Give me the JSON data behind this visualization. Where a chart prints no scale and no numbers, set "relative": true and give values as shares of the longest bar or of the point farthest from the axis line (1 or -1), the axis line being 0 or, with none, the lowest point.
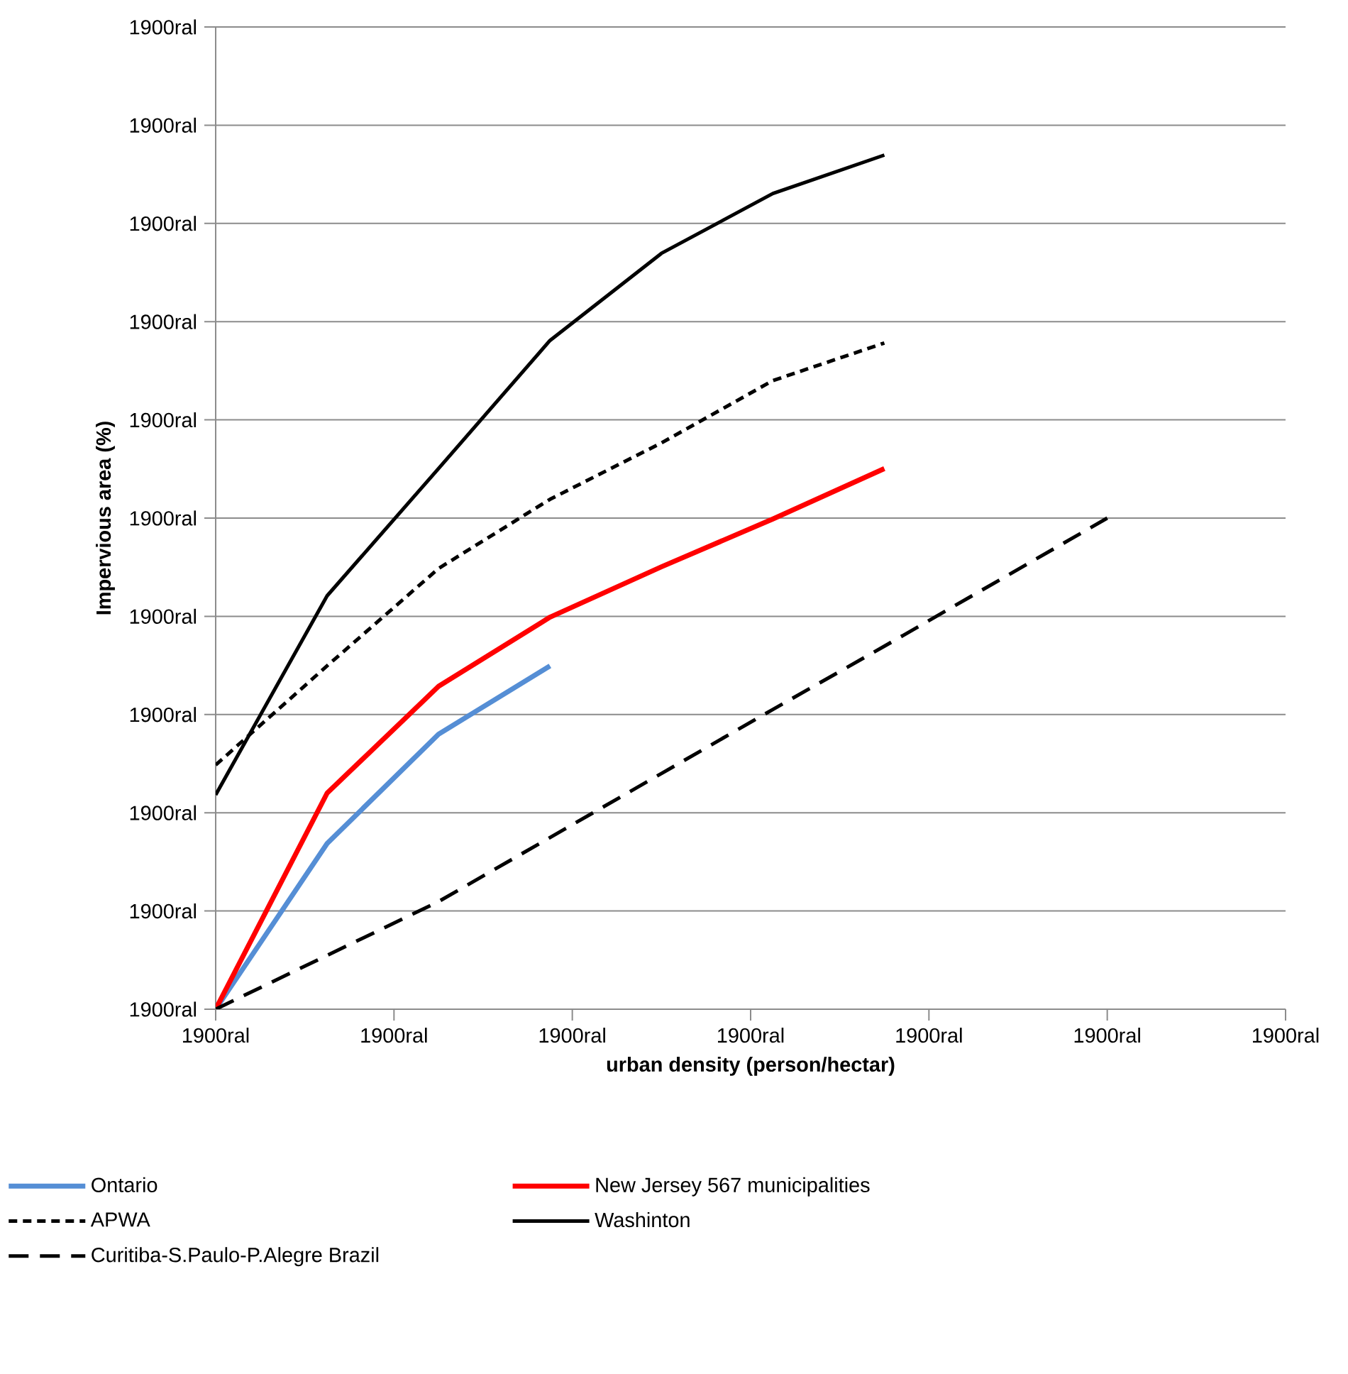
{
  "chart_data": {
    "type": "line",
    "xlabel": "urban density (person/hectar)",
    "ylabel": "Impervious area (%)",
    "relative": true,
    "categories": [
      null,
      null,
      null,
      null,
      null,
      null,
      null,
      null,
      null
    ],
    "annotations": [
      "1900ral",
      "1900ral",
      "1900ral",
      "1900ral",
      "1900ral",
      "1900ral",
      "1900ral",
      "1900ral",
      "1900ral",
      "1900ral",
      "1900ral",
      "1900ral",
      "1900ral",
      "1900ral",
      "1900ral",
      "1900ral",
      "1900ral",
      "1900ral"
    ],
    "grid": "y",
    "legend": "bottom",
    "marker": "none",
    "series": [
      {
        "name": "Ontario",
        "color": "#558ed5",
        "line_style": "solid",
        "values": [
          0,
          0.194,
          0.322,
          0.402,
          null,
          null,
          null,
          null,
          null
        ]
      },
      {
        "name": "New Jersey 567 municipalities",
        "color": "#ff0000",
        "line_style": "solid",
        "values": [
          0,
          0.253,
          0.378,
          0.459,
          0.518,
          0.574,
          0.633,
          null,
          null
        ]
      },
      {
        "name": "APWA",
        "color": "#000000",
        "line_style": "dashed",
        "values": [
          0.286,
          0.402,
          0.516,
          0.597,
          0.663,
          0.736,
          0.78,
          null,
          null
        ]
      },
      {
        "name": "Washinton",
        "color": "#000000",
        "line_style": "solid",
        "values": [
          0.251,
          0.484,
          0.633,
          0.783,
          0.885,
          0.955,
          1,
          null,
          null
        ]
      },
      {
        "name": "Curitiba-S.Paulo-P.Alegre Brazil",
        "color": "#000000",
        "line_style": "dashed",
        "values": [
          0,
          0.063,
          0.126,
          0.201,
          0.276,
          0.351,
          0.425,
          0.5,
          0.575
        ]
      }
    ]
  }
}
